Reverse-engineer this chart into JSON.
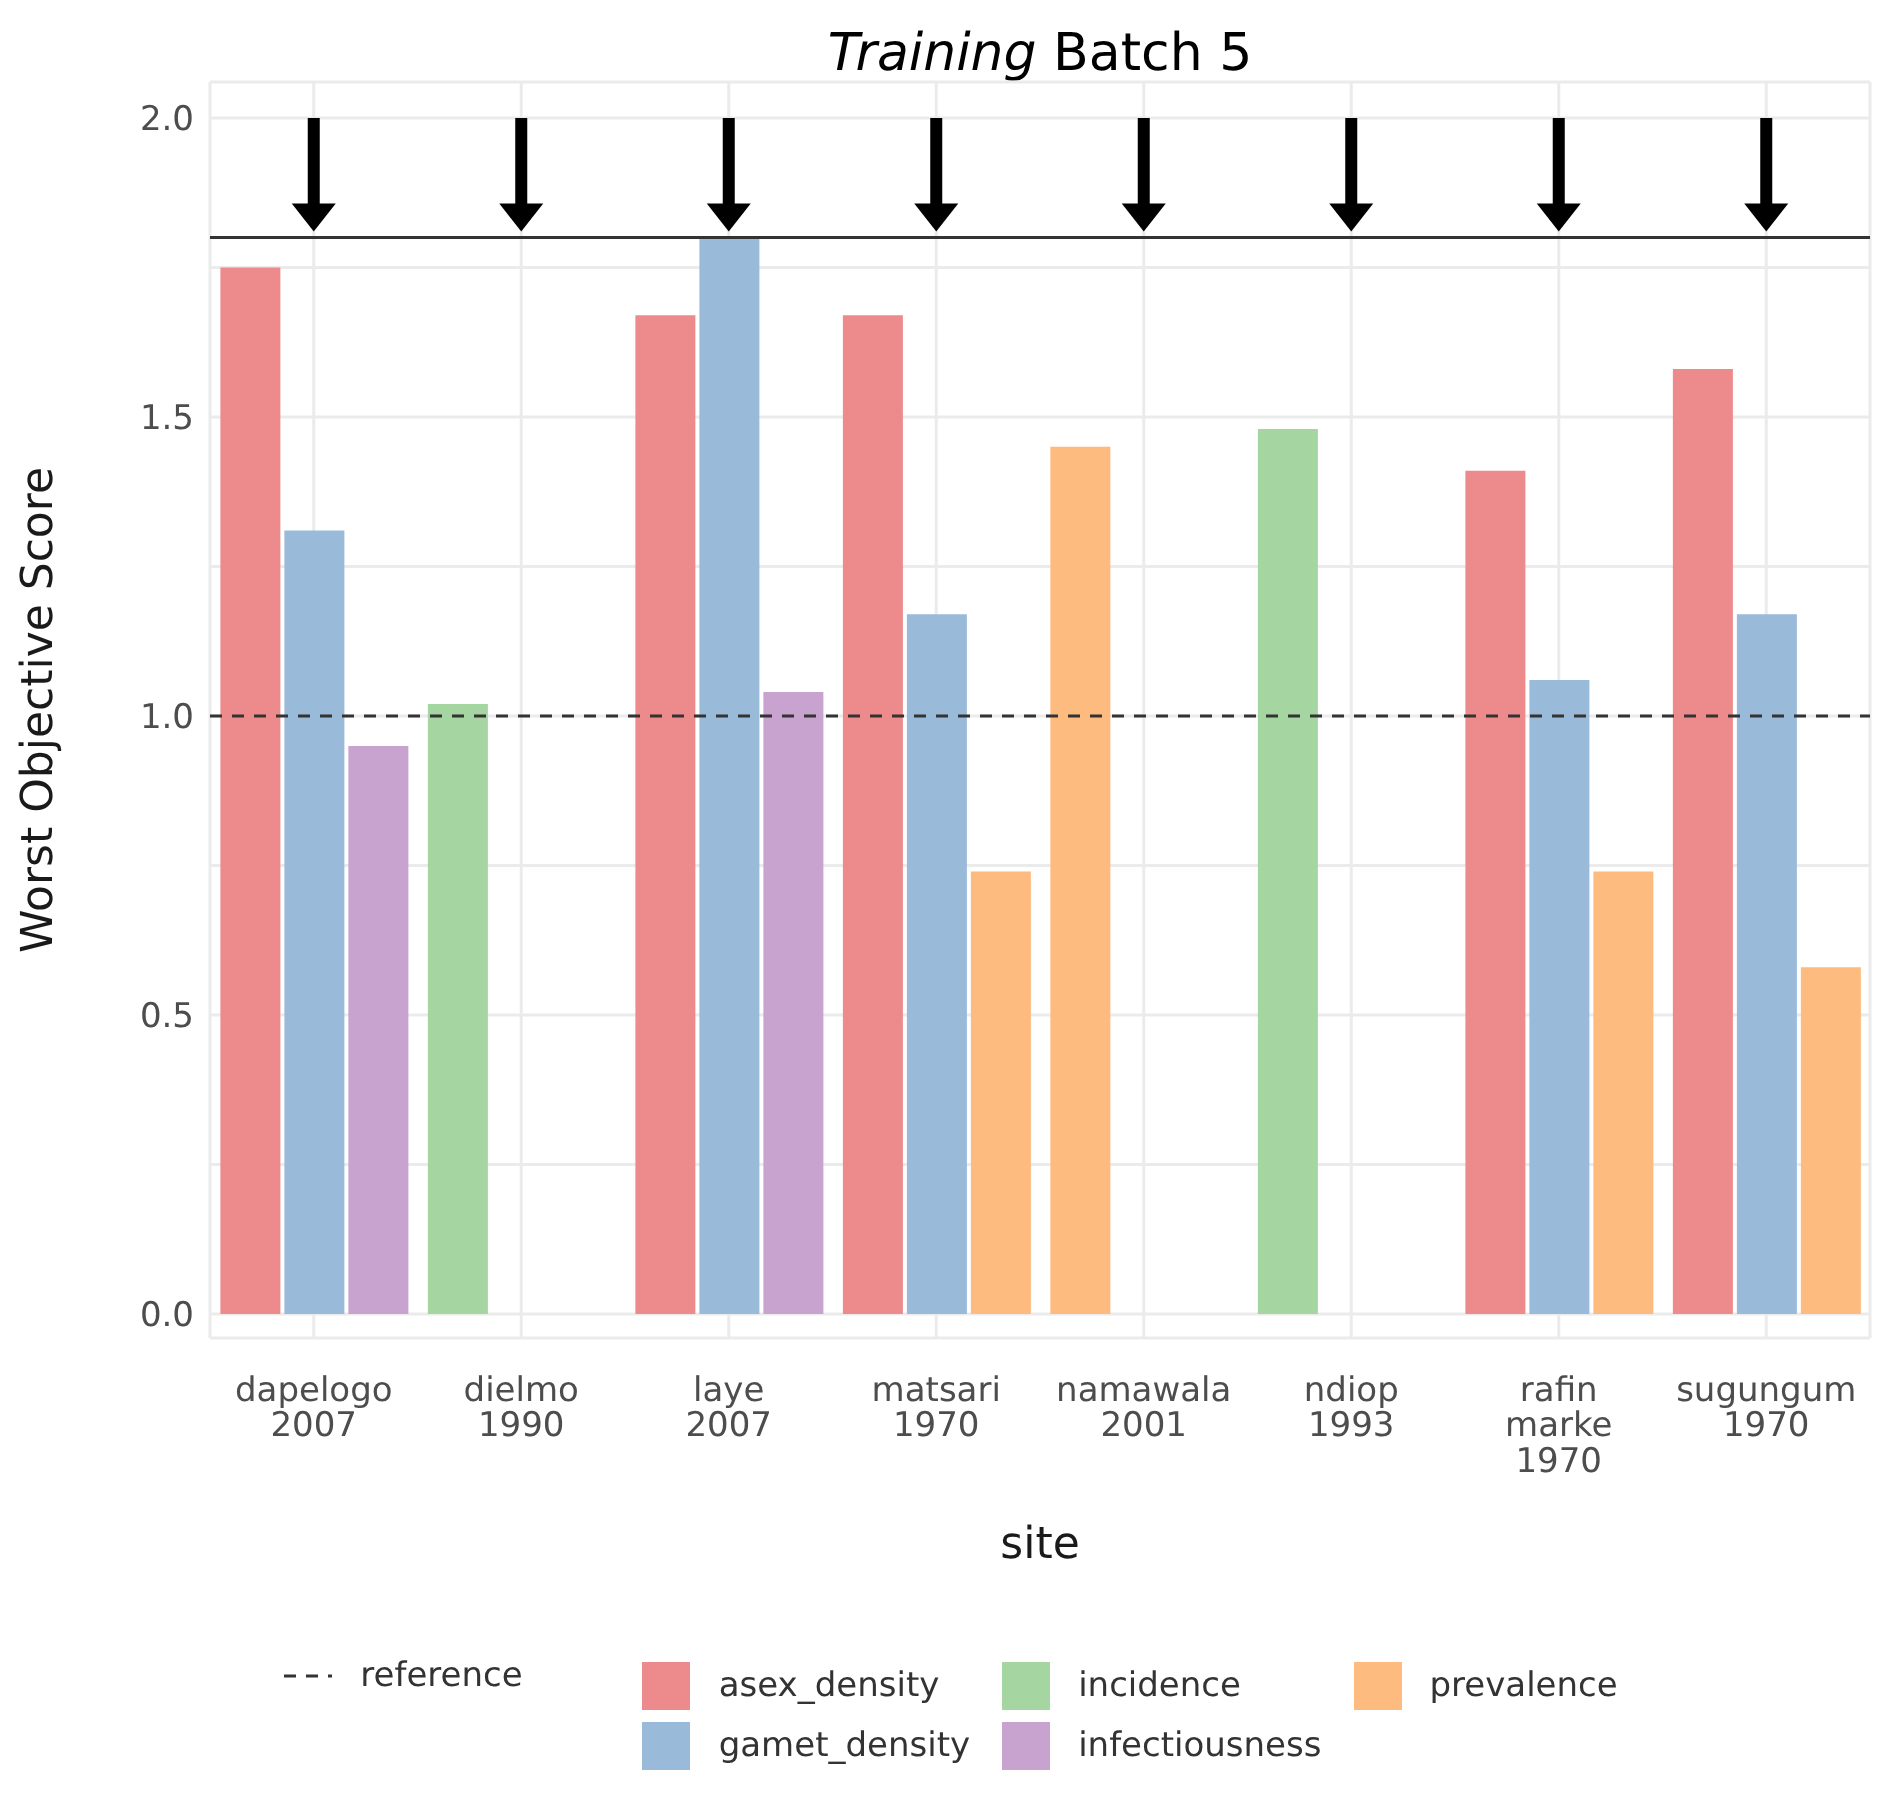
{
  "chart_data": {
    "type": "bar",
    "title": "Training Batch 5",
    "xlabel": "site",
    "ylabel": "Worst Objective Score",
    "categories": [
      "dapelogo\n2007",
      "dielmo\n1990",
      "laye\n2007",
      "matsari\n1970",
      "namawala\n2001",
      "ndiop\n1993",
      "rafin\nmarke\n1970",
      "sugungum\n1970"
    ],
    "series": [
      {
        "name": "asex_density",
        "color": "#ed8a8b",
        "values": [
          1.75,
          null,
          1.67,
          1.67,
          null,
          null,
          1.41,
          1.58
        ]
      },
      {
        "name": "gamet_density",
        "color": "#99bbd9",
        "values": [
          1.31,
          null,
          1.8,
          1.17,
          null,
          null,
          1.06,
          1.17
        ]
      },
      {
        "name": "incidence",
        "color": "#a5d5a0",
        "values": [
          null,
          1.02,
          null,
          null,
          null,
          1.48,
          null,
          null
        ]
      },
      {
        "name": "infectiousness",
        "color": "#c8a3cf",
        "values": [
          0.95,
          null,
          1.04,
          null,
          null,
          null,
          null,
          null
        ]
      },
      {
        "name": "prevalence",
        "color": "#febb7f",
        "values": [
          null,
          null,
          null,
          0.74,
          1.45,
          null,
          0.74,
          0.58
        ]
      }
    ],
    "ylim": [
      -0.04,
      2.06
    ],
    "yticks": [
      {
        "value": 0,
        "label": "0.0"
      },
      {
        "value": 0.25,
        "label": null
      },
      {
        "value": 0.5,
        "label": "0.5"
      },
      {
        "value": 0.75,
        "label": null
      },
      {
        "value": 1,
        "label": "1.0"
      },
      {
        "value": 1.25,
        "label": null
      },
      {
        "value": 1.5,
        "label": "1.5"
      },
      {
        "value": 1.75,
        "label": null
      },
      {
        "value": 2,
        "label": "2.0"
      }
    ],
    "ref_lines": [
      {
        "axis": "y",
        "value": 1,
        "label": "reference",
        "color": "#333333",
        "line_style": "dashed"
      },
      {
        "axis": "y",
        "value": 1.8,
        "color": "#333333",
        "line_style": "solid"
      }
    ],
    "grid": true,
    "legend": "bottom"
  }
}
